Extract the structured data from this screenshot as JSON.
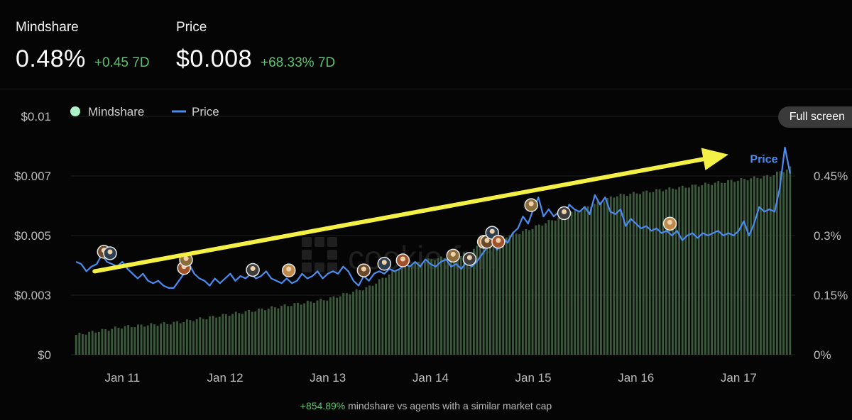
{
  "stats": {
    "mindshare": {
      "label": "Mindshare",
      "value": "0.48%",
      "change": "+0.45 7D"
    },
    "price": {
      "label": "Price",
      "value": "$0.008",
      "change": "+68.33% 7D"
    }
  },
  "full_screen_label": "Full screen",
  "watermark": "cookie.fun",
  "footnote": {
    "value": "+854.89%",
    "text": " mindshare vs agents with a similar market cap"
  },
  "colors": {
    "price_line": "#4a8cf0",
    "bars": "#3b5a3c",
    "positive": "#5dc26e",
    "arrow": "#f4f046",
    "legend_mindshare": "#aef2c8"
  },
  "chart_data": {
    "type": "bar+line",
    "legend": [
      {
        "name": "Mindshare",
        "marker": "circle"
      },
      {
        "name": "Price",
        "marker": "line"
      }
    ],
    "x_ticks": [
      "Jan 11",
      "Jan 12",
      "Jan 13",
      "Jan 14",
      "Jan 15",
      "Jan 16",
      "Jan 17"
    ],
    "x_tick_positions": [
      11,
      12,
      13,
      14,
      15,
      16,
      17
    ],
    "x_range": [
      10.5,
      17.55
    ],
    "y_left": {
      "ticks": [
        "$0",
        "$0.003",
        "$0.005",
        "$0.007",
        "$0.01"
      ],
      "range": [
        0,
        0.01
      ]
    },
    "y_right": {
      "ticks": [
        "0%",
        "0.15%",
        "0.3%",
        "0.45%"
      ],
      "range": [
        0,
        0.6
      ]
    },
    "price_label": "Price",
    "series": [
      {
        "name": "Price",
        "points": [
          [
            10.55,
            0.0039
          ],
          [
            10.6,
            0.0038
          ],
          [
            10.65,
            0.0035
          ],
          [
            10.7,
            0.0037
          ],
          [
            10.75,
            0.0038
          ],
          [
            10.8,
            0.0042
          ],
          [
            10.85,
            0.0039
          ],
          [
            10.9,
            0.0038
          ],
          [
            10.95,
            0.0037
          ],
          [
            11.0,
            0.0039
          ],
          [
            11.05,
            0.0036
          ],
          [
            11.1,
            0.0034
          ],
          [
            11.15,
            0.0032
          ],
          [
            11.2,
            0.0034
          ],
          [
            11.25,
            0.0031
          ],
          [
            11.3,
            0.003
          ],
          [
            11.35,
            0.0031
          ],
          [
            11.4,
            0.0029
          ],
          [
            11.45,
            0.0028
          ],
          [
            11.5,
            0.0028
          ],
          [
            11.55,
            0.0031
          ],
          [
            11.6,
            0.0034
          ],
          [
            11.65,
            0.0038
          ],
          [
            11.7,
            0.0034
          ],
          [
            11.75,
            0.0032
          ],
          [
            11.8,
            0.0031
          ],
          [
            11.85,
            0.0029
          ],
          [
            11.9,
            0.0032
          ],
          [
            11.95,
            0.003
          ],
          [
            12.0,
            0.0032
          ],
          [
            12.05,
            0.0034
          ],
          [
            12.1,
            0.0031
          ],
          [
            12.15,
            0.0033
          ],
          [
            12.2,
            0.0032
          ],
          [
            12.25,
            0.0034
          ],
          [
            12.3,
            0.0032
          ],
          [
            12.35,
            0.0033
          ],
          [
            12.4,
            0.0035
          ],
          [
            12.45,
            0.0032
          ],
          [
            12.5,
            0.0031
          ],
          [
            12.55,
            0.003
          ],
          [
            12.6,
            0.0032
          ],
          [
            12.65,
            0.003
          ],
          [
            12.7,
            0.0031
          ],
          [
            12.75,
            0.0034
          ],
          [
            12.8,
            0.0032
          ],
          [
            12.85,
            0.0033
          ],
          [
            12.9,
            0.0035
          ],
          [
            12.95,
            0.0032
          ],
          [
            13.0,
            0.0034
          ],
          [
            13.05,
            0.0035
          ],
          [
            13.1,
            0.0034
          ],
          [
            13.15,
            0.0037
          ],
          [
            13.2,
            0.0035
          ],
          [
            13.25,
            0.0031
          ],
          [
            13.3,
            0.0029
          ],
          [
            13.35,
            0.0033
          ],
          [
            13.4,
            0.0031
          ],
          [
            13.45,
            0.0034
          ],
          [
            13.5,
            0.0035
          ],
          [
            13.55,
            0.0034
          ],
          [
            13.6,
            0.0036
          ],
          [
            13.65,
            0.0035
          ],
          [
            13.7,
            0.0036
          ],
          [
            13.75,
            0.0038
          ],
          [
            13.8,
            0.0037
          ],
          [
            13.85,
            0.0039
          ],
          [
            13.9,
            0.0037
          ],
          [
            13.95,
            0.004
          ],
          [
            14.0,
            0.0038
          ],
          [
            14.05,
            0.0037
          ],
          [
            14.1,
            0.0039
          ],
          [
            14.15,
            0.004
          ],
          [
            14.2,
            0.0037
          ],
          [
            14.25,
            0.0038
          ],
          [
            14.3,
            0.0036
          ],
          [
            14.35,
            0.0039
          ],
          [
            14.4,
            0.0037
          ],
          [
            14.45,
            0.0039
          ],
          [
            14.5,
            0.0042
          ],
          [
            14.55,
            0.0045
          ],
          [
            14.6,
            0.0047
          ],
          [
            14.65,
            0.0044
          ],
          [
            14.7,
            0.0049
          ],
          [
            14.75,
            0.0047
          ],
          [
            14.8,
            0.0051
          ],
          [
            14.85,
            0.0053
          ],
          [
            14.9,
            0.0058
          ],
          [
            14.95,
            0.0055
          ],
          [
            15.0,
            0.0061
          ],
          [
            15.05,
            0.0066
          ],
          [
            15.1,
            0.0058
          ],
          [
            15.15,
            0.0061
          ],
          [
            15.2,
            0.0058
          ],
          [
            15.25,
            0.006
          ],
          [
            15.3,
            0.0057
          ],
          [
            15.35,
            0.0063
          ],
          [
            15.4,
            0.0061
          ],
          [
            15.45,
            0.006
          ],
          [
            15.5,
            0.0062
          ],
          [
            15.55,
            0.0059
          ],
          [
            15.6,
            0.0067
          ],
          [
            15.65,
            0.0063
          ],
          [
            15.7,
            0.0066
          ],
          [
            15.75,
            0.006
          ],
          [
            15.8,
            0.0059
          ],
          [
            15.85,
            0.0061
          ],
          [
            15.9,
            0.0054
          ],
          [
            15.95,
            0.0057
          ],
          [
            16.0,
            0.0055
          ],
          [
            16.05,
            0.0053
          ],
          [
            16.1,
            0.0054
          ],
          [
            16.15,
            0.0052
          ],
          [
            16.2,
            0.0053
          ],
          [
            16.25,
            0.0051
          ],
          [
            16.3,
            0.0052
          ],
          [
            16.35,
            0.005
          ],
          [
            16.4,
            0.0052
          ],
          [
            16.45,
            0.0048
          ],
          [
            16.5,
            0.005
          ],
          [
            16.55,
            0.0051
          ],
          [
            16.6,
            0.0049
          ],
          [
            16.65,
            0.0051
          ],
          [
            16.7,
            0.005
          ],
          [
            16.75,
            0.0051
          ],
          [
            16.8,
            0.0052
          ],
          [
            16.85,
            0.005
          ],
          [
            16.9,
            0.0051
          ],
          [
            16.95,
            0.005
          ],
          [
            17.0,
            0.0052
          ],
          [
            17.05,
            0.0056
          ],
          [
            17.1,
            0.005
          ],
          [
            17.15,
            0.0055
          ],
          [
            17.2,
            0.0062
          ],
          [
            17.25,
            0.006
          ],
          [
            17.3,
            0.0061
          ],
          [
            17.35,
            0.006
          ],
          [
            17.4,
            0.007
          ],
          [
            17.45,
            0.0087
          ],
          [
            17.5,
            0.0076
          ]
        ]
      }
    ],
    "mindshare_bars": {
      "name": "Mindshare",
      "start": 10.55,
      "end": 17.5,
      "count": 220,
      "profile": [
        [
          10.55,
          0.05
        ],
        [
          11.0,
          0.07
        ],
        [
          11.5,
          0.08
        ],
        [
          12.0,
          0.1
        ],
        [
          12.5,
          0.12
        ],
        [
          13.0,
          0.14
        ],
        [
          13.4,
          0.17
        ],
        [
          13.7,
          0.22
        ],
        [
          14.0,
          0.24
        ],
        [
          14.3,
          0.25
        ],
        [
          14.6,
          0.29
        ],
        [
          14.9,
          0.31
        ],
        [
          15.2,
          0.34
        ],
        [
          15.5,
          0.37
        ],
        [
          15.8,
          0.4
        ],
        [
          16.1,
          0.41
        ],
        [
          16.4,
          0.42
        ],
        [
          16.7,
          0.43
        ],
        [
          17.0,
          0.44
        ],
        [
          17.3,
          0.45
        ],
        [
          17.5,
          0.47
        ]
      ]
    },
    "event_markers": [
      {
        "x": 10.82,
        "icon": "avatar-icon"
      },
      {
        "x": 10.88,
        "icon": "avatar-icon"
      },
      {
        "x": 11.6,
        "icon": "avatar-icon"
      },
      {
        "x": 11.62,
        "icon": "avatar-icon"
      },
      {
        "x": 12.27,
        "icon": "avatar-icon"
      },
      {
        "x": 12.62,
        "icon": "avatar-icon"
      },
      {
        "x": 13.35,
        "icon": "avatar-icon"
      },
      {
        "x": 13.55,
        "icon": "avatar-icon"
      },
      {
        "x": 13.73,
        "icon": "avatar-icon"
      },
      {
        "x": 14.22,
        "icon": "avatar-icon"
      },
      {
        "x": 14.38,
        "icon": "avatar-icon"
      },
      {
        "x": 14.52,
        "icon": "avatar-icon"
      },
      {
        "x": 14.55,
        "icon": "avatar-icon"
      },
      {
        "x": 14.6,
        "icon": "avatar-icon"
      },
      {
        "x": 14.66,
        "icon": "avatar-icon"
      },
      {
        "x": 14.98,
        "icon": "avatar-icon"
      },
      {
        "x": 15.3,
        "icon": "avatar-icon"
      },
      {
        "x": 16.33,
        "icon": "avatar-icon"
      }
    ],
    "annotation_arrow": {
      "from": [
        10.73,
        0.0035
      ],
      "to": [
        16.9,
        0.0084
      ]
    }
  }
}
